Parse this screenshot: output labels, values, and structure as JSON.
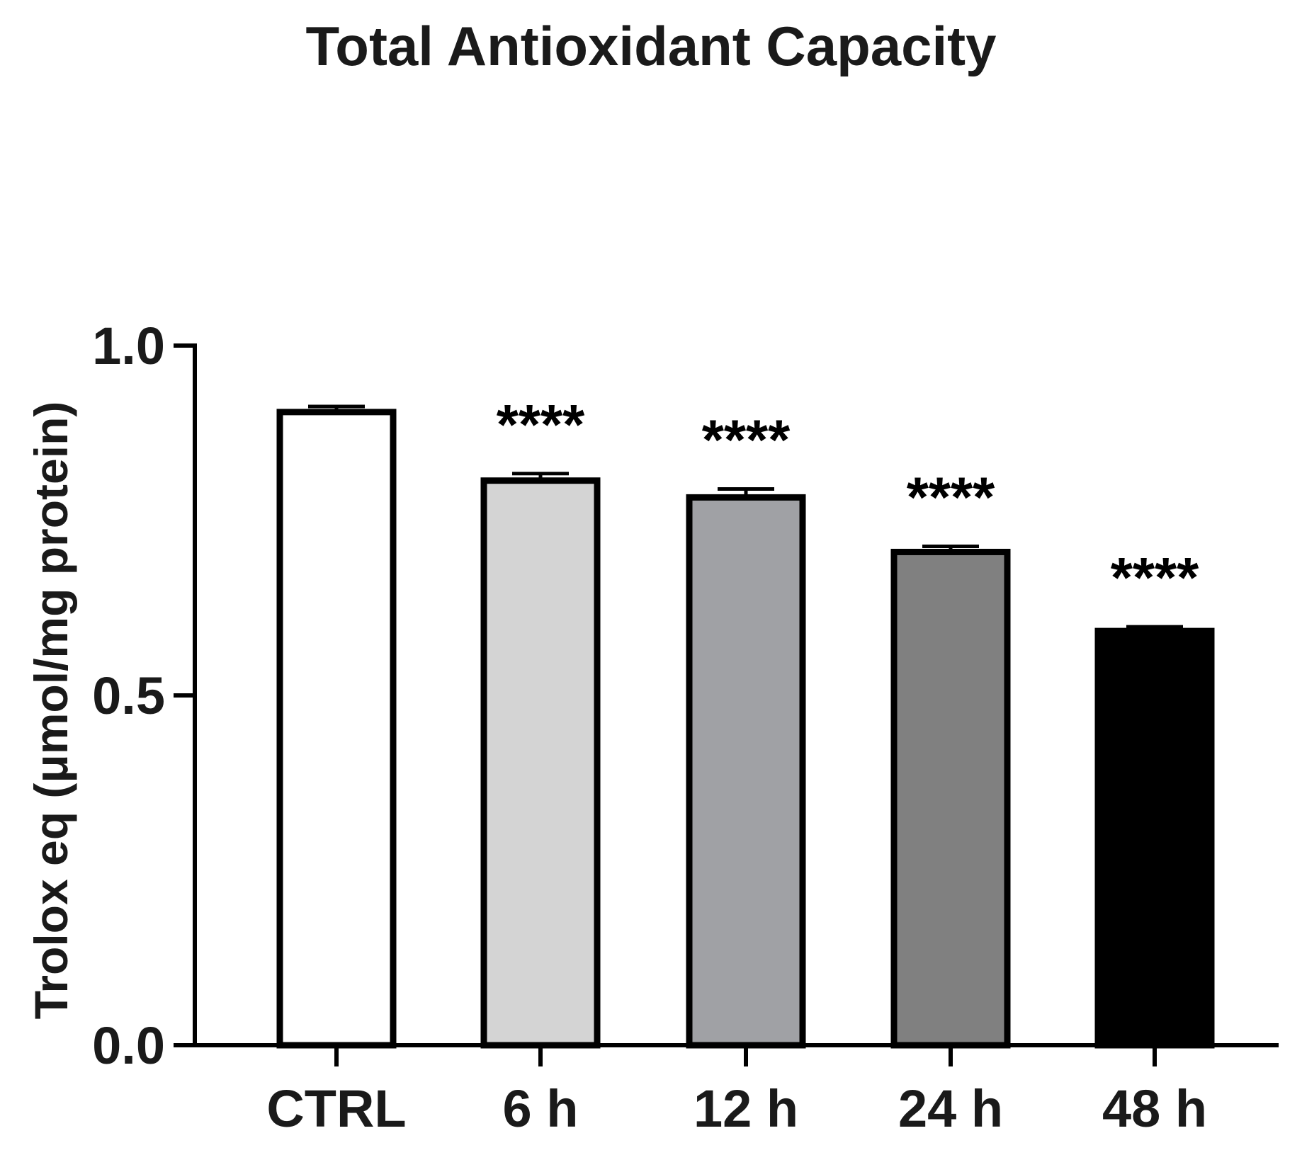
{
  "chart_data": {
    "type": "bar",
    "title": "Total Antioxidant Capacity",
    "xlabel": "",
    "ylabel": "Trolox eq (μmol/mg protein)",
    "ylim": [
      0.0,
      1.0
    ],
    "yticks": [
      0.0,
      0.5,
      1.0
    ],
    "ytick_labels": [
      "0.0",
      "0.5",
      "1.0"
    ],
    "grid": false,
    "legend": "none",
    "categories": [
      "CTRL",
      "6 h",
      "12 h",
      "24 h",
      "48 h"
    ],
    "values": [
      0.905,
      0.807,
      0.783,
      0.705,
      0.592
    ],
    "errors": [
      0.008,
      0.01,
      0.012,
      0.008,
      0.006
    ],
    "annotations": [
      "",
      "****",
      "****",
      "****",
      "****"
    ],
    "bar_colors": [
      "#ffffff",
      "#d4d4d4",
      "#a0a1a5",
      "#808080",
      "#000000"
    ]
  }
}
